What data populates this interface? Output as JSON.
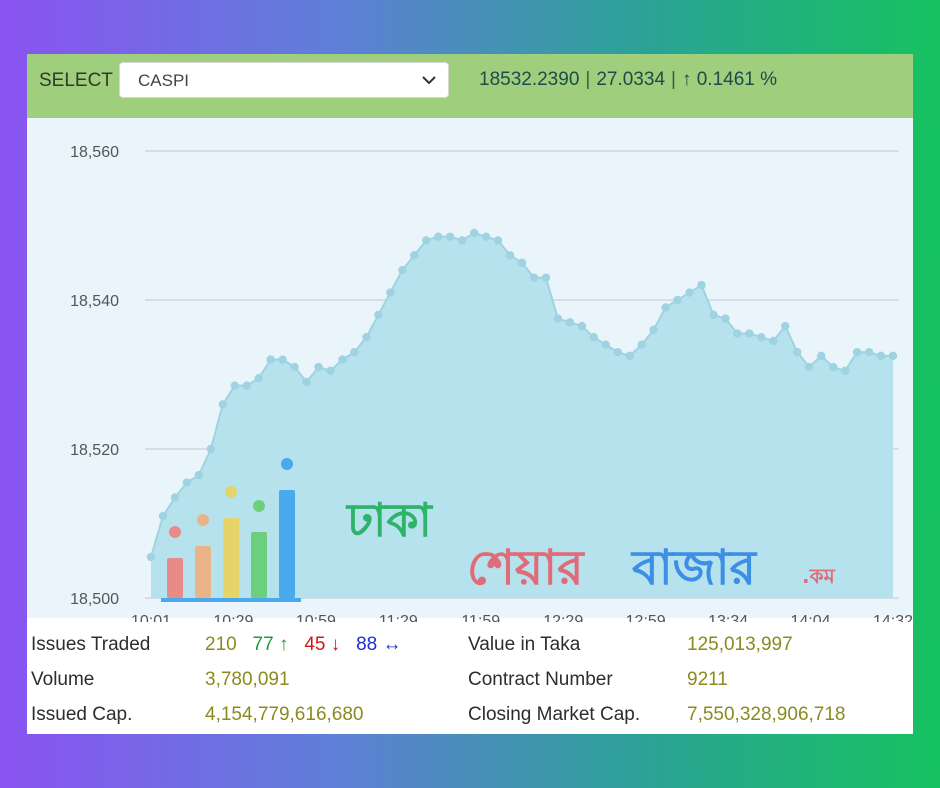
{
  "toolbar": {
    "select_label": "SELECT",
    "selected_index": "CASPI",
    "value": "18532.2390",
    "change": "27.0334",
    "change_pct": "↑ 0.1461 %"
  },
  "colors": {
    "accent_bar": "#9fce7c",
    "area_fill": "#b3e0ec",
    "line": "#9fd3e2",
    "up": "#1d9c3a",
    "down": "#d01919",
    "flat": "#1d2fd0"
  },
  "watermark": {
    "line1": "ঢাকা",
    "line2_part1": "শেয়ার",
    "line2_part2": "বাজার",
    "suffix": ".কম",
    "icon": "bar-chart-icon"
  },
  "stats": {
    "issues_traded": {
      "label": "Issues Traded",
      "total": "210",
      "up": "77",
      "down": "45",
      "flat": "88"
    },
    "volume": {
      "label": "Volume",
      "value": "3,780,091"
    },
    "issued_cap": {
      "label": "Issued Cap.",
      "value": "4,154,779,616,680"
    },
    "value_in_taka": {
      "label": "Value in Taka",
      "value": "125,013,997"
    },
    "contract_number": {
      "label": "Contract Number",
      "value": "9211"
    },
    "closing_market_cap": {
      "label": "Closing Market Cap.",
      "value": "7,550,328,906,718"
    }
  },
  "chart_data": {
    "type": "area",
    "title": "",
    "xlabel": "",
    "ylabel": "",
    "ylim": [
      18500,
      18560
    ],
    "y_ticks": [
      "18,500",
      "18,520",
      "18,540",
      "18,560"
    ],
    "y_tick_values": [
      18500,
      18520,
      18540,
      18560
    ],
    "x_ticks": [
      "10:01",
      "10:29",
      "10:59",
      "11:29",
      "11:59",
      "12:29",
      "12:59",
      "13:34",
      "14:04",
      "14:32"
    ],
    "grid": true,
    "series": [
      {
        "values": [
          18505.5,
          18511,
          18513.5,
          18515.5,
          18516.5,
          18520,
          18526,
          18528.5,
          18528.5,
          18529.5,
          18532,
          18532,
          18531,
          18529,
          18531,
          18530.5,
          18532,
          18533,
          18535,
          18538,
          18541,
          18544,
          18546,
          18548,
          18548.5,
          18548.5,
          18548,
          18549,
          18548.5,
          18548,
          18546,
          18545,
          18543,
          18543,
          18537.5,
          18537,
          18536.5,
          18535,
          18534,
          18533,
          18532.5,
          18534,
          18536,
          18539,
          18540,
          18541,
          18542,
          18538,
          18537.5,
          18535.5,
          18535.5,
          18535,
          18534.5,
          18536.5,
          18533,
          18531,
          18532.5,
          18531,
          18530.5,
          18533,
          18533,
          18532.5,
          18532.5
        ]
      }
    ]
  }
}
